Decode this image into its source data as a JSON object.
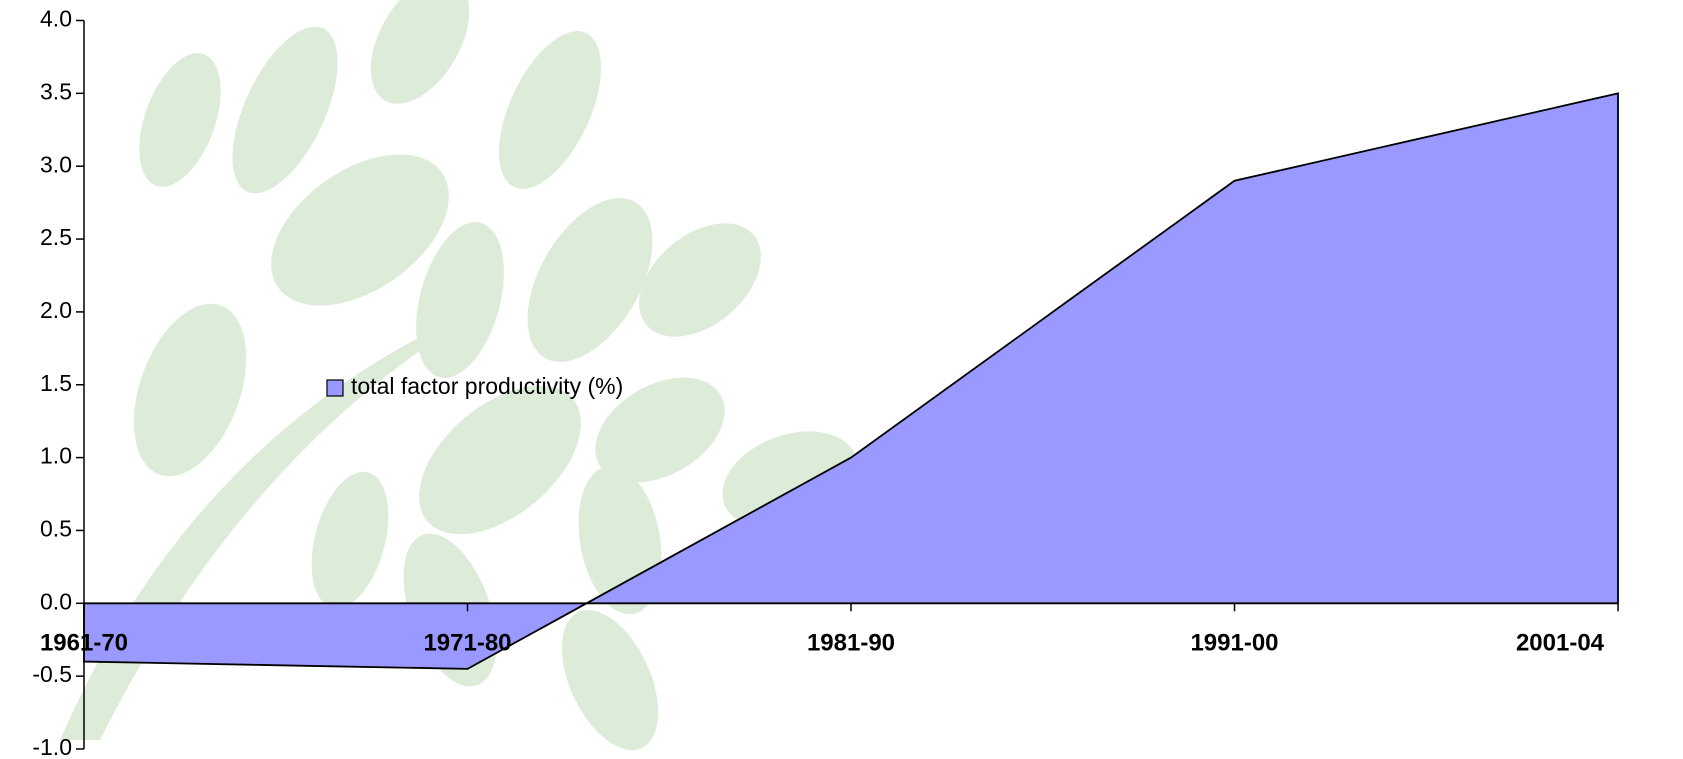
{
  "chart_data": {
    "type": "area",
    "categories": [
      "1961-70",
      "1971-80",
      "1981-90",
      "1991-00",
      "2001-04"
    ],
    "series": [
      {
        "name": "total factor productivity (%)",
        "color": "#9999ff",
        "values": [
          -0.4,
          -0.45,
          1.0,
          2.9,
          3.5
        ]
      }
    ],
    "ylim": [
      -1,
      4
    ],
    "yticks": [
      {
        "value": -1,
        "label": "-1.0"
      },
      -0.5,
      {
        "value": 0,
        "label": "0.0"
      },
      0.5,
      {
        "value": 1,
        "label": "1.0"
      },
      1.5,
      {
        "value": 2,
        "label": "2.0"
      },
      2.5,
      {
        "value": 3,
        "label": "3.0"
      },
      3.5,
      {
        "value": 4,
        "label": "4.0"
      }
    ],
    "legend": "left"
  }
}
